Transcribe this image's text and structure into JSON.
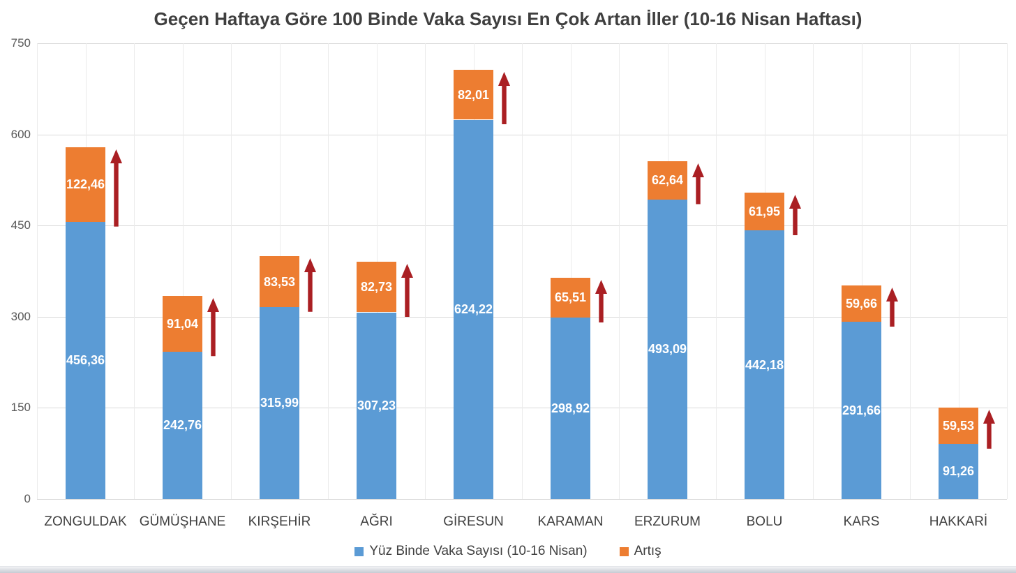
{
  "title": "Geçen Haftaya Göre 100 Binde Vaka Sayısı En Çok Artan İller (10-16 Nisan Haftası)",
  "chart_data": {
    "type": "bar",
    "stacked": true,
    "title": "Geçen Haftaya Göre 100 Binde Vaka Sayısı En Çok Artan İller (10-16 Nisan Haftası)",
    "categories": [
      "ZONGULDAK",
      "GÜMÜŞHANE",
      "KIRŞEHİR",
      "AĞRI",
      "GİRESUN",
      "KARAMAN",
      "ERZURUM",
      "BOLU",
      "KARS",
      "HAKKARİ"
    ],
    "series": [
      {
        "name": "Yüz Binde Vaka Sayısı (10-16 Nisan)",
        "color": "#5B9BD5",
        "values": [
          456.36,
          242.76,
          315.99,
          307.23,
          624.22,
          298.92,
          493.09,
          442.18,
          291.66,
          91.26
        ],
        "labels": [
          "456,36",
          "242,76",
          "315,99",
          "307,23",
          "624,22",
          "298,92",
          "493,09",
          "442,18",
          "291,66",
          "91,26"
        ]
      },
      {
        "name": "Artış",
        "color": "#ED7D31",
        "values": [
          122.46,
          91.04,
          83.53,
          82.73,
          82.01,
          65.51,
          62.64,
          61.95,
          59.66,
          59.53
        ],
        "labels": [
          "122,46",
          "91,04",
          "83,53",
          "82,73",
          "82,01",
          "65,51",
          "62,64",
          "61,95",
          "59,66",
          "59,53"
        ]
      }
    ],
    "y_ticks": [
      0,
      150,
      300,
      450,
      600,
      750
    ],
    "y_tick_labels": [
      "0",
      "150",
      "300",
      "450",
      "600",
      "750"
    ],
    "ylim": [
      0,
      750
    ],
    "grid": true,
    "legend_position": "bottom",
    "annotations": "dark red up-arrow beside each Artış segment",
    "colors": {
      "background": "#FFFFFF",
      "gridline": "#D9D9D9",
      "arrow": "#AA1F23",
      "axis_text": "#595959",
      "category_text": "#404040",
      "title_text": "#3F3F3F",
      "data_label_text": "#FFFFFF"
    }
  }
}
